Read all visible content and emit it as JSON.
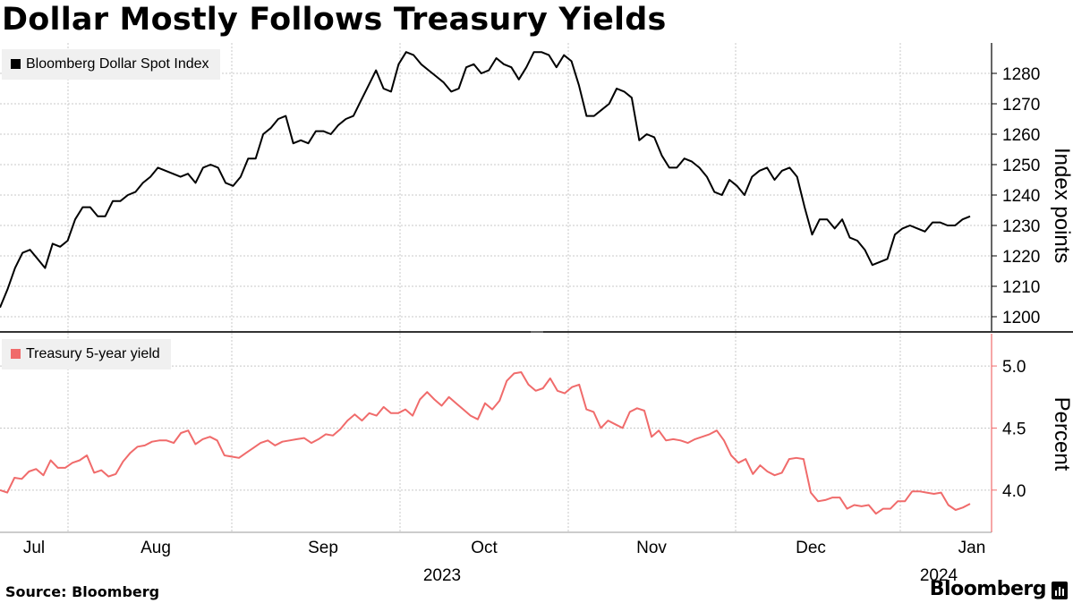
{
  "title": "Dollar Mostly Follows Treasury Yields",
  "source": "Source: Bloomberg",
  "brand": "Bloomberg",
  "colors": {
    "dollar": "#000000",
    "yield": "#f06b6b",
    "grid": "#c8c8c8"
  },
  "chart_data": [
    {
      "type": "line",
      "legend": "Bloomberg Dollar Spot Index",
      "ylabel": "Index points",
      "ylim": [
        1195,
        1290
      ],
      "yticks": [
        "1200",
        "1210",
        "1220",
        "1230",
        "1240",
        "1250",
        "1260",
        "1270",
        "1280"
      ],
      "legend_position": "top-left",
      "grid": true,
      "values": [
        1203,
        1209,
        1216,
        1221,
        1222,
        1219,
        1216,
        1224,
        1223,
        1225,
        1232,
        1236,
        1236,
        1233,
        1233,
        1238,
        1238,
        1240,
        1241,
        1244,
        1246,
        1249,
        1248,
        1247,
        1246,
        1247,
        1244,
        1249,
        1250,
        1249,
        1244,
        1243,
        1246,
        1252,
        1252,
        1260,
        1262,
        1265,
        1266,
        1257,
        1258,
        1257,
        1261,
        1261,
        1260,
        1263,
        1265,
        1266,
        1271,
        1276,
        1281,
        1275,
        1274,
        1283,
        1287,
        1286,
        1283,
        1281,
        1279,
        1277,
        1274,
        1275,
        1282,
        1283,
        1280,
        1281,
        1285,
        1283,
        1282,
        1278,
        1282,
        1287,
        1287,
        1286,
        1282,
        1286,
        1284,
        1276,
        1266,
        1266,
        1268,
        1270,
        1275,
        1274,
        1272,
        1258,
        1260,
        1259,
        1253,
        1249,
        1249,
        1252,
        1251,
        1249,
        1246,
        1241,
        1240,
        1245,
        1243,
        1240,
        1246,
        1248,
        1249,
        1245,
        1248,
        1249,
        1246,
        1236,
        1227,
        1232,
        1232,
        1229,
        1232,
        1226,
        1225,
        1222,
        1217,
        1218,
        1219,
        1227,
        1229,
        1230,
        1229,
        1228,
        1231,
        1231,
        1230,
        1230,
        1232,
        1233
      ]
    },
    {
      "type": "line",
      "legend": "Treasury 5-year yield",
      "ylabel": "Percent",
      "ylim": [
        3.66,
        5.26
      ],
      "yticks": [
        "4.0",
        "4.5",
        "5.0"
      ],
      "legend_position": "top-left",
      "grid": true,
      "values": [
        4.0,
        3.98,
        4.1,
        4.09,
        4.15,
        4.17,
        4.12,
        4.24,
        4.18,
        4.18,
        4.22,
        4.24,
        4.28,
        4.14,
        4.16,
        4.11,
        4.13,
        4.23,
        4.3,
        4.35,
        4.36,
        4.39,
        4.4,
        4.4,
        4.38,
        4.46,
        4.48,
        4.37,
        4.41,
        4.43,
        4.4,
        4.28,
        4.27,
        4.26,
        4.3,
        4.34,
        4.38,
        4.4,
        4.36,
        4.39,
        4.4,
        4.41,
        4.42,
        4.38,
        4.41,
        4.45,
        4.44,
        4.49,
        4.56,
        4.61,
        4.56,
        4.62,
        4.6,
        4.67,
        4.62,
        4.62,
        4.65,
        4.6,
        4.73,
        4.79,
        4.73,
        4.68,
        4.75,
        4.7,
        4.65,
        4.6,
        4.57,
        4.7,
        4.65,
        4.72,
        4.88,
        4.94,
        4.95,
        4.85,
        4.8,
        4.82,
        4.9,
        4.8,
        4.78,
        4.83,
        4.85,
        4.65,
        4.63,
        4.5,
        4.56,
        4.53,
        4.5,
        4.63,
        4.66,
        4.64,
        4.43,
        4.48,
        4.4,
        4.41,
        4.4,
        4.38,
        4.41,
        4.43,
        4.45,
        4.48,
        4.4,
        4.28,
        4.22,
        4.25,
        4.13,
        4.2,
        4.15,
        4.12,
        4.14,
        4.25,
        4.26,
        4.25,
        3.98,
        3.91,
        3.92,
        3.94,
        3.94,
        3.85,
        3.88,
        3.87,
        3.88,
        3.81,
        3.85,
        3.85,
        3.91,
        3.91,
        3.99,
        3.99,
        3.98,
        3.97,
        3.98,
        3.88,
        3.84,
        3.86,
        3.89
      ]
    }
  ],
  "x_axis": {
    "months": [
      "Jul",
      "Aug",
      "Sep",
      "Oct",
      "Nov",
      "Dec",
      "Jan"
    ],
    "years": [
      {
        "label": "2023",
        "under": "Oct"
      },
      {
        "label": "2024",
        "under": "Jan"
      }
    ]
  }
}
